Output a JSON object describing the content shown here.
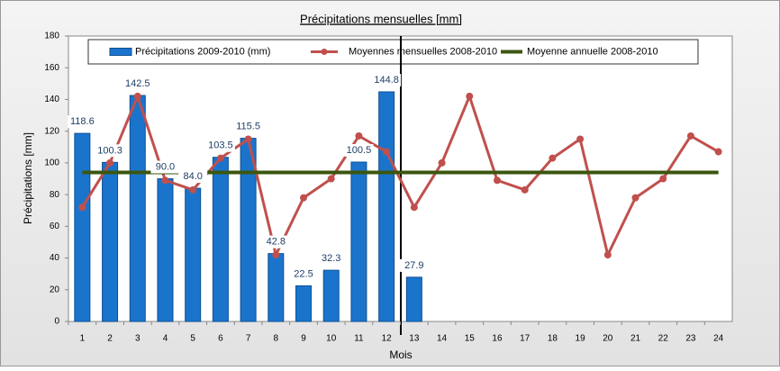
{
  "chart_data": {
    "type": "bar-line",
    "title": "Précipitations mensuelles [mm]",
    "y_label": "Précipitations [mm]",
    "x_label": "Mois",
    "categories": [
      "1",
      "2",
      "3",
      "4",
      "5",
      "6",
      "7",
      "8",
      "9",
      "10",
      "11",
      "12",
      "13",
      "14",
      "15",
      "16",
      "17",
      "18",
      "19",
      "20",
      "21",
      "22",
      "23",
      "24"
    ],
    "ylim": [
      0,
      180
    ],
    "yticks": [
      0,
      20,
      40,
      60,
      80,
      100,
      120,
      140,
      160,
      180
    ],
    "series": [
      {
        "name": "Précipitations 2009-2010 (mm)",
        "kind": "bar",
        "color": "#1b74cc",
        "values": [
          118.6,
          100.3,
          142.5,
          90.0,
          84.0,
          103.5,
          115.5,
          42.8,
          22.5,
          32.3,
          100.5,
          144.8,
          27.9,
          null,
          null,
          null,
          null,
          null,
          null,
          null,
          null,
          null,
          null,
          null
        ],
        "value_labels": [
          "118.6",
          "100.3",
          "142.5",
          "90.0",
          "84.0",
          "103.5",
          "115.5",
          "42.8",
          "22.5",
          "32.3",
          "100.5",
          "144.8",
          "27.9",
          null,
          null,
          null,
          null,
          null,
          null,
          null,
          null,
          null,
          null,
          null
        ]
      },
      {
        "name": "Moyennes mensuelles 2008-2010",
        "kind": "line",
        "color": "#c0504d",
        "values": [
          72,
          100,
          142,
          89,
          83,
          103,
          115,
          42,
          78,
          90,
          117,
          107,
          72,
          100,
          142,
          89,
          83,
          103,
          115,
          42,
          78,
          90,
          117,
          107
        ]
      },
      {
        "name": "Moyenne annuelle 2008-2010",
        "kind": "hline",
        "color": "#3b560f",
        "value": 94
      }
    ]
  }
}
